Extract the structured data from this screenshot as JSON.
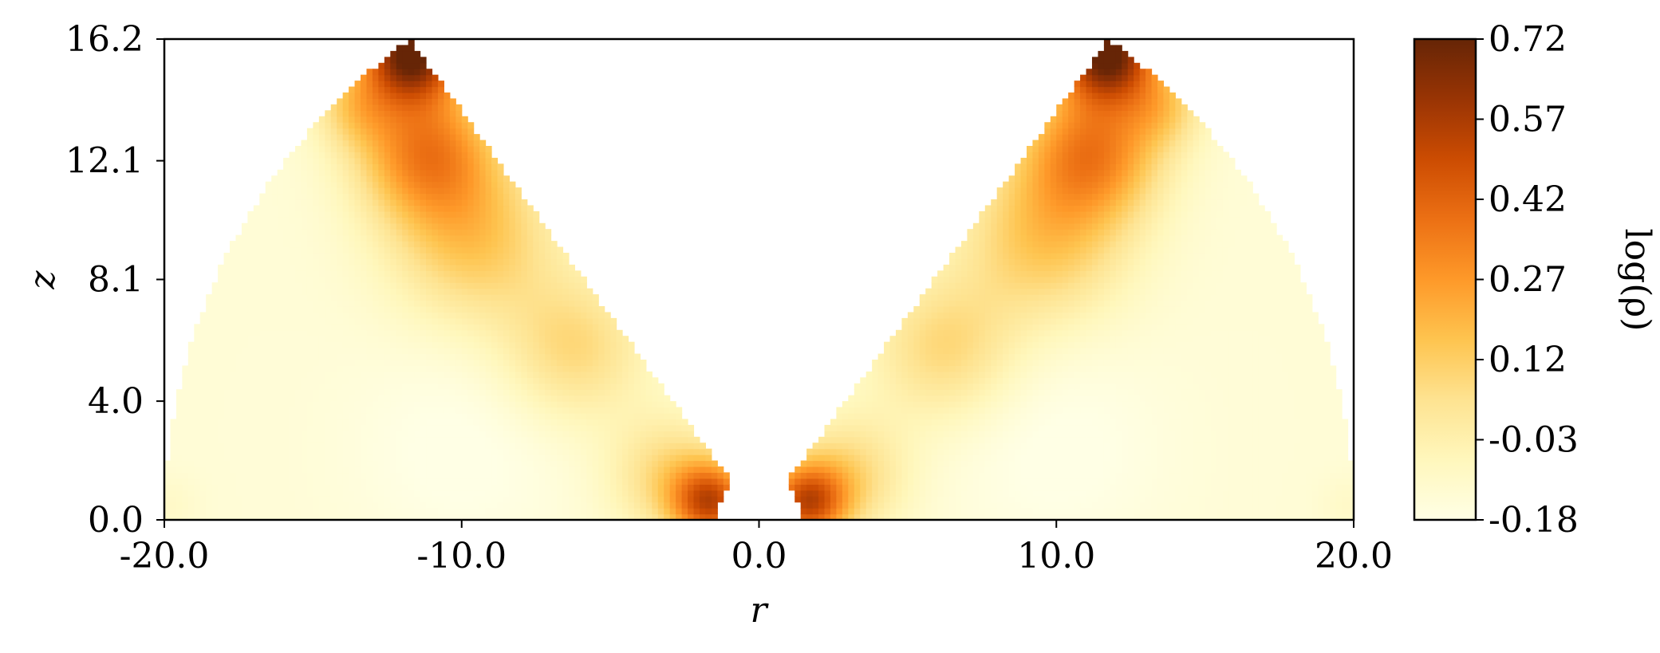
{
  "chart_data": {
    "type": "heatmap",
    "title": "",
    "xlabel": "r",
    "ylabel": "z",
    "xlim": [
      -20.0,
      20.0
    ],
    "ylim": [
      0.0,
      16.2
    ],
    "x_ticks": [
      "-20.0",
      "-10.0",
      "0.0",
      "10.0",
      "20.0"
    ],
    "x_tick_values": [
      -20.0,
      -10.0,
      0.0,
      10.0,
      20.0
    ],
    "y_ticks": [
      "0.0",
      "4.0",
      "8.1",
      "12.1",
      "16.2"
    ],
    "y_tick_values": [
      0.0,
      4.0,
      8.1,
      12.1,
      16.2
    ],
    "domain": {
      "outer_radius": 20.0,
      "inner_radius": 1.45,
      "wedge_edge_polar_angle_deg": 36
    },
    "colorbar": {
      "label": "log(ρ)",
      "min": -0.18,
      "max": 0.72,
      "ticks": [
        "-0.18",
        "-0.03",
        "0.12",
        "0.27",
        "0.42",
        "0.57",
        "0.72"
      ],
      "tick_values": [
        -0.18,
        -0.03,
        0.12,
        0.27,
        0.42,
        0.57,
        0.72
      ],
      "colormap": [
        "#ffffe5",
        "#fff7bc",
        "#fee391",
        "#fec44f",
        "#fe9929",
        "#ec7014",
        "#cc4c02",
        "#993404",
        "#662506"
      ]
    },
    "features": [
      {
        "r": -11.8,
        "z": 15.0,
        "log_rho": 0.7
      },
      {
        "r": 11.8,
        "z": 15.0,
        "log_rho": 0.66
      },
      {
        "r": -11.0,
        "z": 11.5,
        "log_rho": 0.45
      },
      {
        "r": 11.0,
        "z": 11.5,
        "log_rho": 0.42
      },
      {
        "r": -1.6,
        "z": 0.5,
        "log_rho": 0.45
      },
      {
        "r": 1.6,
        "z": 0.5,
        "log_rho": 0.45
      },
      {
        "r": -10.0,
        "z": 2.5,
        "log_rho": -0.17
      },
      {
        "r": 10.0,
        "z": 2.5,
        "log_rho": -0.17
      },
      {
        "r": -16.0,
        "z": 6.0,
        "log_rho": -0.12
      },
      {
        "r": 16.0,
        "z": 6.0,
        "log_rho": -0.12
      }
    ]
  }
}
